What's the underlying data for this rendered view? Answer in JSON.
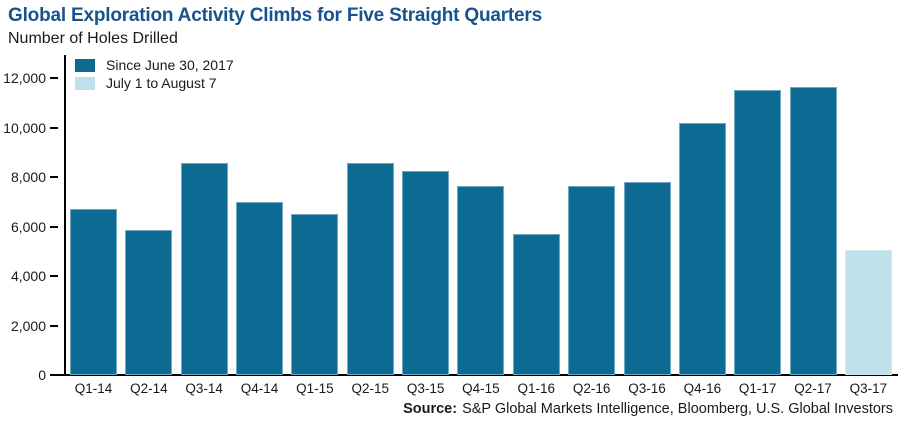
{
  "title": "Global Exploration Activity Climbs for Five Straight Quarters",
  "subtitle": "Number of Holes Drilled",
  "legend": [
    {
      "label": "Since June 30, 2017",
      "color": "#0d6b93",
      "series": "since_june_30_2017"
    },
    {
      "label": "July 1 to August 7",
      "color": "#bfe1ec",
      "series": "july_1_to_august_7"
    }
  ],
  "source": {
    "label": "Source:",
    "text": "S&P Global Markets Intelligence, Bloomberg, U.S. Global Investors"
  },
  "colors": {
    "title": "#19538c",
    "axis": "#000000",
    "text": "#1a1a1a",
    "bar_dark": "#0d6b93",
    "bar_light": "#bfe1ec"
  },
  "chart_data": {
    "type": "bar",
    "title": "Global Exploration Activity Climbs for Five Straight Quarters",
    "xlabel": "",
    "ylabel": "Number of Holes Drilled",
    "categories": [
      "Q1-14",
      "Q2-14",
      "Q3-14",
      "Q4-14",
      "Q1-15",
      "Q2-15",
      "Q3-15",
      "Q4-15",
      "Q1-16",
      "Q2-16",
      "Q3-16",
      "Q4-16",
      "Q1-17",
      "Q2-17",
      "Q3-17"
    ],
    "values": [
      6700,
      5850,
      8550,
      7000,
      6500,
      8550,
      8250,
      7650,
      5700,
      7650,
      7800,
      10200,
      11500,
      11650,
      5050
    ],
    "bar_series": [
      "since_june_30_2017",
      "since_june_30_2017",
      "since_june_30_2017",
      "since_june_30_2017",
      "since_june_30_2017",
      "since_june_30_2017",
      "since_june_30_2017",
      "since_june_30_2017",
      "since_june_30_2017",
      "since_june_30_2017",
      "since_june_30_2017",
      "since_june_30_2017",
      "since_june_30_2017",
      "since_june_30_2017",
      "july_1_to_august_7"
    ],
    "series_colors": {
      "since_june_30_2017": "#0d6b93",
      "july_1_to_august_7": "#bfe1ec"
    },
    "ylim": [
      0,
      12000
    ],
    "yticks": [
      0,
      2000,
      4000,
      6000,
      8000,
      10000,
      12000
    ],
    "grid": false,
    "legend_position": "top-left"
  }
}
